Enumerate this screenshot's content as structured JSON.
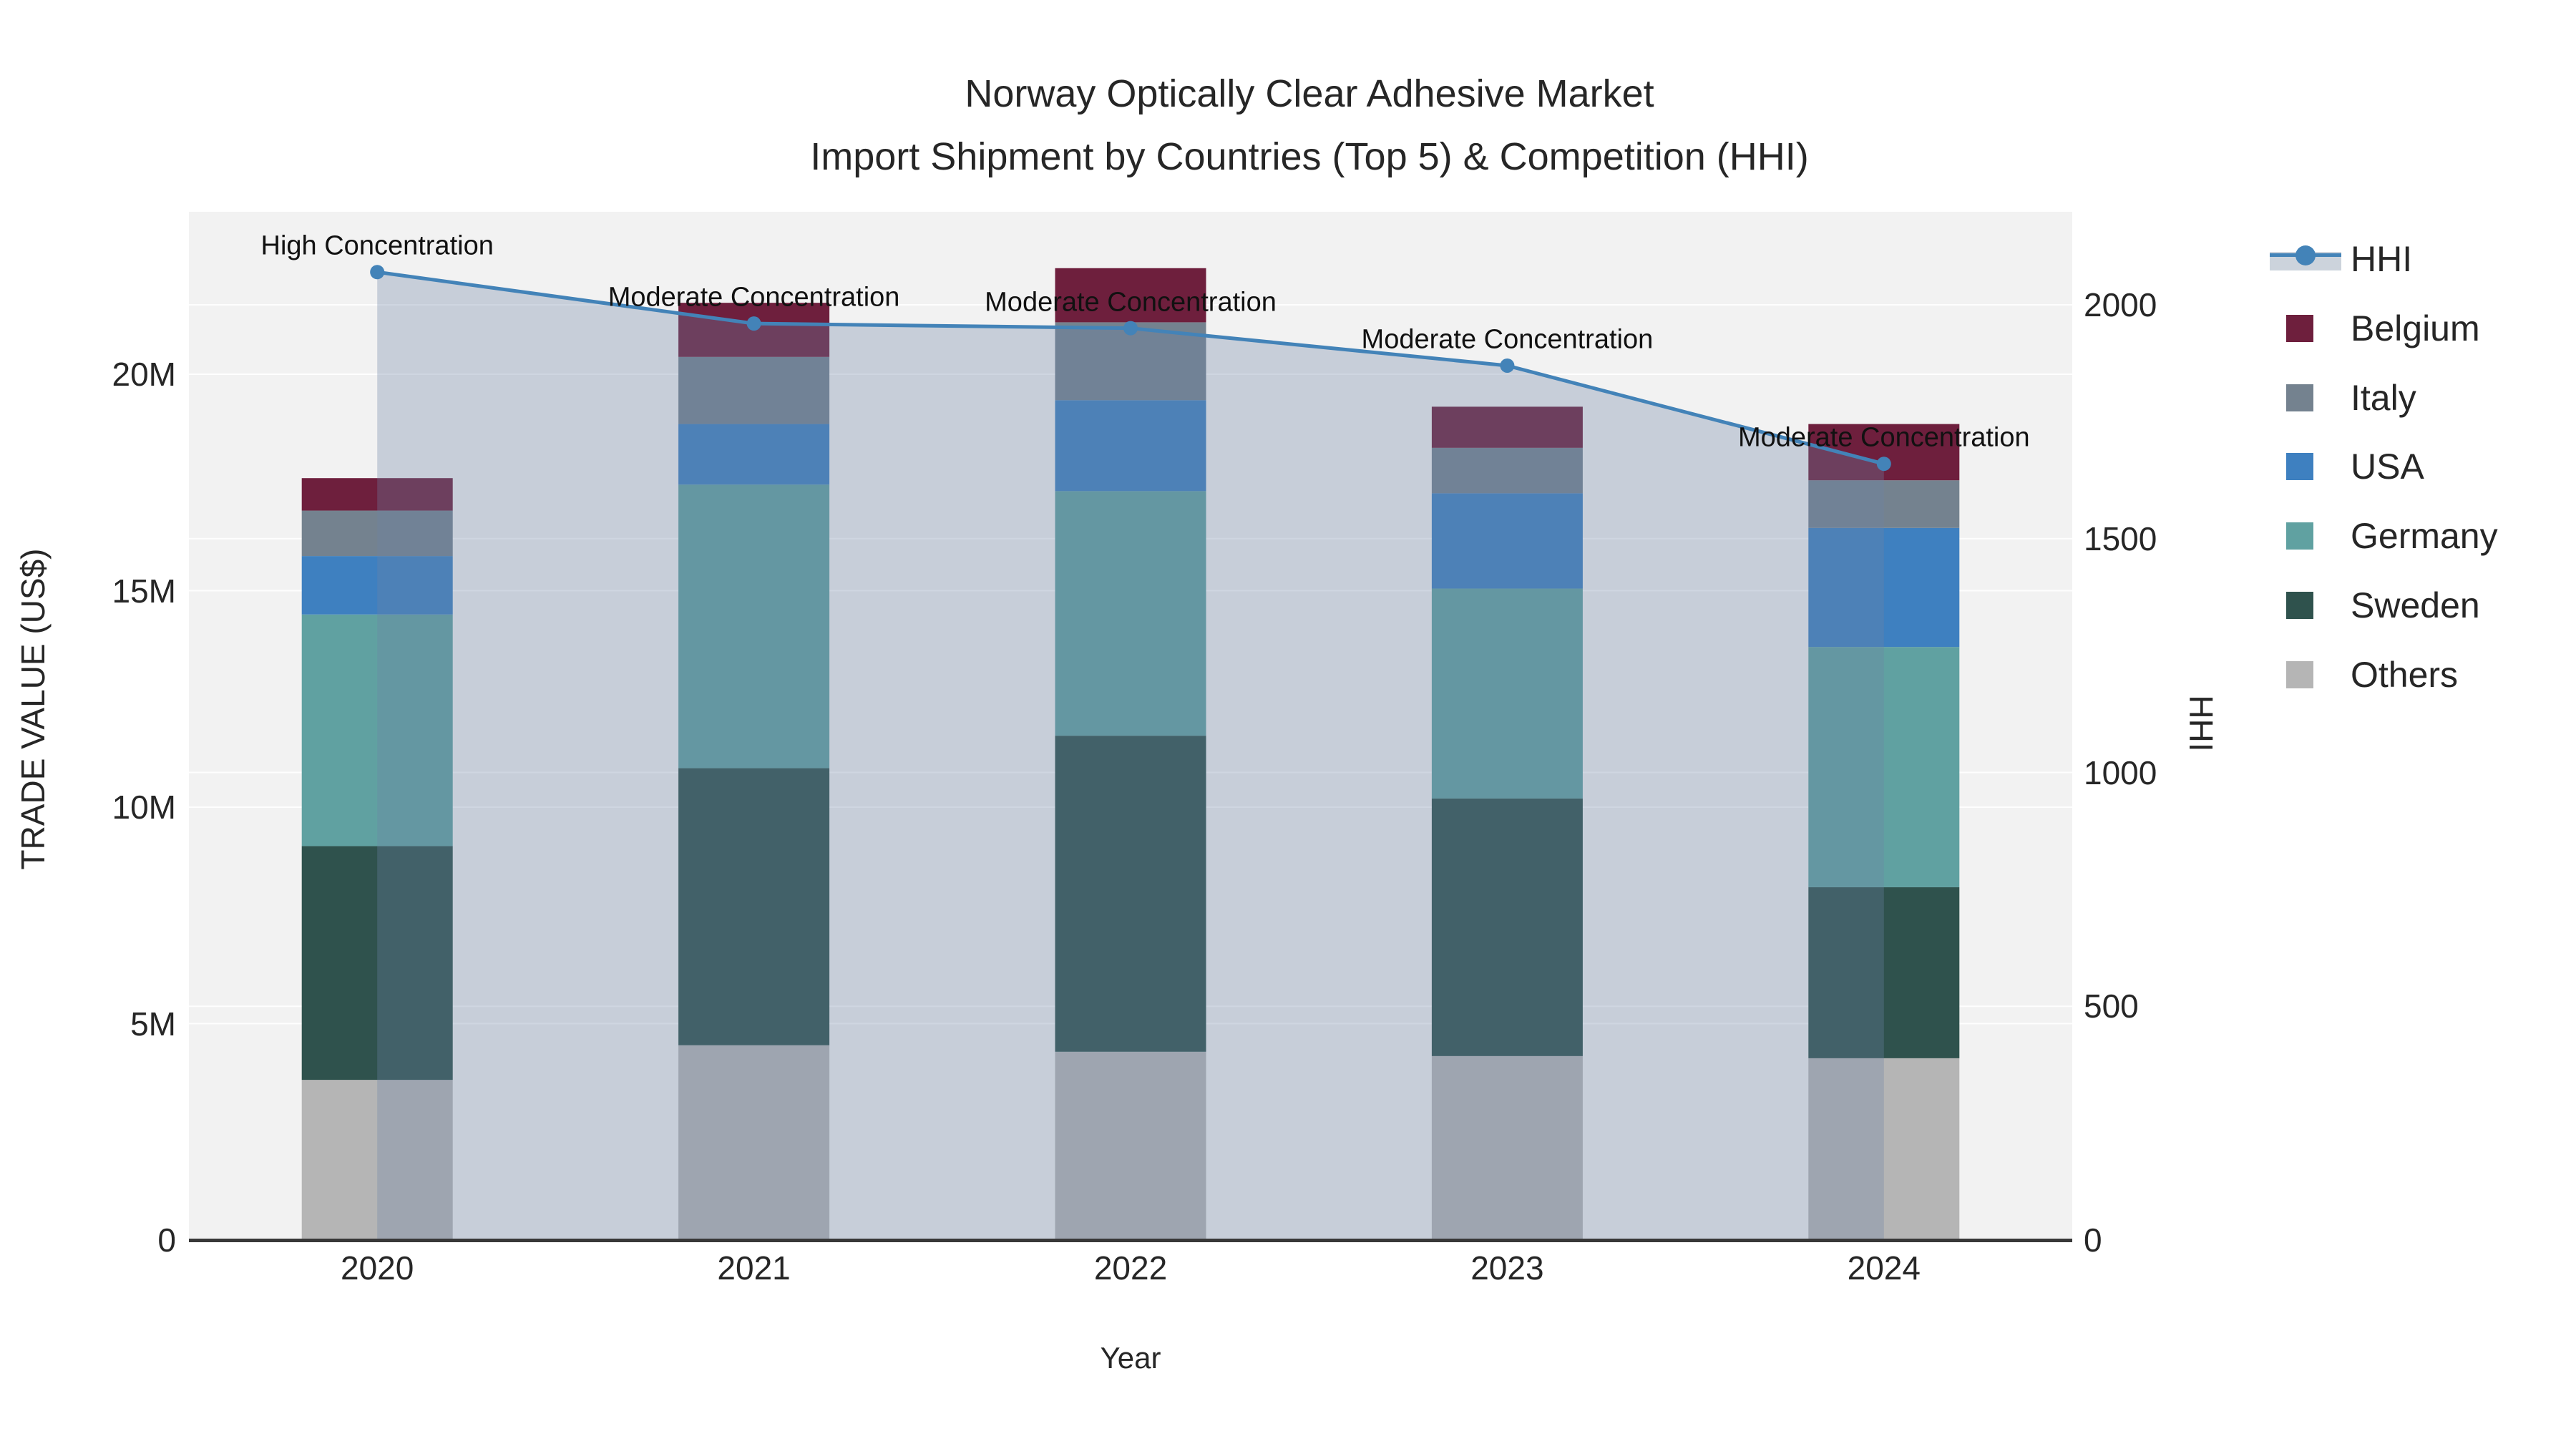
{
  "title": {
    "line1": "Norway Optically Clear Adhesive Market",
    "line2": "Import Shipment by Countries (Top 5) & Competition (HHI)"
  },
  "axes": {
    "x": {
      "title": "Year",
      "ticks": [
        "2020",
        "2021",
        "2022",
        "2023",
        "2024"
      ]
    },
    "y_left": {
      "title": "TRADE VALUE (US$)",
      "ticks": [
        {
          "label": "0",
          "value": 0
        },
        {
          "label": "5M",
          "value": 5
        },
        {
          "label": "10M",
          "value": 10
        },
        {
          "label": "15M",
          "value": 15
        },
        {
          "label": "20M",
          "value": 20
        }
      ]
    },
    "y_right": {
      "title": "HHI",
      "ticks": [
        {
          "label": "0",
          "value": 0
        },
        {
          "label": "500",
          "value": 500
        },
        {
          "label": "1000",
          "value": 1000
        },
        {
          "label": "1500",
          "value": 1500
        },
        {
          "label": "2000",
          "value": 2000
        }
      ]
    }
  },
  "legend": {
    "items": [
      {
        "label": "HHI",
        "type": "line",
        "color": "#4383b8",
        "fill": "#ccd3dc"
      },
      {
        "label": "Belgium",
        "type": "swatch",
        "color": "#6e1f3d"
      },
      {
        "label": "Italy",
        "type": "swatch",
        "color": "#74828f"
      },
      {
        "label": "USA",
        "type": "swatch",
        "color": "#3e80c0"
      },
      {
        "label": "Germany",
        "type": "swatch",
        "color": "#60a1a1"
      },
      {
        "label": "Sweden",
        "type": "swatch",
        "color": "#2f524d"
      },
      {
        "label": "Others",
        "type": "swatch",
        "color": "#b5b5b5"
      }
    ]
  },
  "chart_data": {
    "type": "combo: stacked bar (left axis) + line with step area fill (right axis)",
    "categories": [
      "2020",
      "2021",
      "2022",
      "2023",
      "2024"
    ],
    "bar_unit": "USD millions (trade value)",
    "stack_order_bottom_to_top": [
      "Others",
      "Sweden",
      "Germany",
      "USA",
      "Italy",
      "Belgium"
    ],
    "series": [
      {
        "name": "Others",
        "color": "#b5b5b5",
        "values_musd": [
          3.7,
          4.5,
          4.35,
          4.25,
          4.2
        ]
      },
      {
        "name": "Sweden",
        "color": "#2f524d",
        "values_musd": [
          5.4,
          6.4,
          7.3,
          5.95,
          3.95
        ]
      },
      {
        "name": "Germany",
        "color": "#60a1a1",
        "values_musd": [
          5.35,
          6.55,
          5.65,
          4.85,
          5.55
        ]
      },
      {
        "name": "USA",
        "color": "#3e80c0",
        "values_musd": [
          1.35,
          1.4,
          2.1,
          2.2,
          2.75
        ]
      },
      {
        "name": "Italy",
        "color": "#74828f",
        "values_musd": [
          1.05,
          1.55,
          1.8,
          1.05,
          1.1
        ]
      },
      {
        "name": "Belgium",
        "color": "#6e1f3d",
        "values_musd": [
          0.75,
          1.25,
          1.25,
          0.95,
          1.3
        ]
      }
    ],
    "totals_musd": [
      17.6,
      21.65,
      22.45,
      19.25,
      18.85
    ],
    "line": {
      "name": "HHI",
      "values": [
        2070,
        1960,
        1950,
        1870,
        1660
      ],
      "color": "#4383b8",
      "area_fill": "rgba(110,130,165,0.32)"
    },
    "annotations": [
      {
        "x": "2020",
        "text": "High Concentration"
      },
      {
        "x": "2021",
        "text": "Moderate Concentration"
      },
      {
        "x": "2022",
        "text": "Moderate Concentration"
      },
      {
        "x": "2023",
        "text": "Moderate Concentration"
      },
      {
        "x": "2024",
        "text": "Moderate Concentration"
      }
    ],
    "ylim_left_musd": [
      0,
      23.8
    ],
    "ylim_right": [
      0,
      2200
    ],
    "grid": "on",
    "legend_position": "right-top-outside",
    "plot_bg": "#f2f2f2",
    "gridline_color": "rgba(255,255,255,0.9)"
  }
}
